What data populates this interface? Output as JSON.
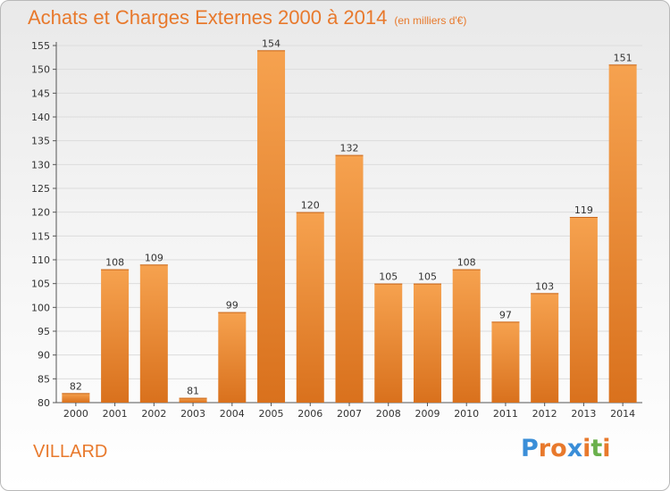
{
  "header": {
    "title": "Achats et Charges Externes 2000 à 2014",
    "unit": "(en milliers d'€)"
  },
  "footer": {
    "place": "VILLARD",
    "logo": "Proxiti"
  },
  "colors": {
    "accent": "#e8792c",
    "bar_light": "#f6a24f",
    "bar_dark": "#d9711d",
    "logo_letters": [
      "#3a8ed8",
      "#e8792c",
      "#e8792c",
      "#3a8ed8",
      "#e8792c",
      "#6ab04c",
      "#e8792c"
    ]
  },
  "chart_data": {
    "type": "bar",
    "title": "Achats et Charges Externes 2000 à 2014",
    "subtitle": "(en milliers d'€)",
    "categories": [
      "2000",
      "2001",
      "2002",
      "2003",
      "2004",
      "2005",
      "2006",
      "2007",
      "2008",
      "2009",
      "2010",
      "2011",
      "2012",
      "2013",
      "2014"
    ],
    "values": [
      82,
      108,
      109,
      81,
      99,
      154,
      120,
      132,
      105,
      105,
      108,
      97,
      103,
      119,
      151
    ],
    "xlabel": "",
    "ylabel": "",
    "ylim": [
      80,
      155
    ],
    "yticks": [
      80,
      85,
      90,
      95,
      100,
      105,
      110,
      115,
      120,
      125,
      130,
      135,
      140,
      145,
      150,
      155
    ],
    "grid": true,
    "data_labels": true
  }
}
